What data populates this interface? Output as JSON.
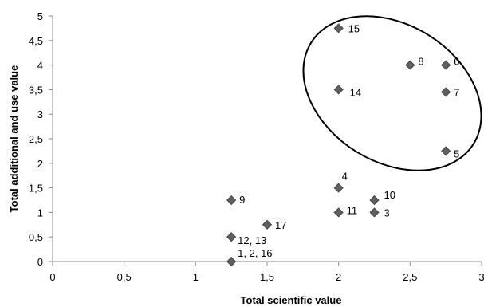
{
  "chart_data": {
    "type": "scatter",
    "title": "",
    "xlabel": "Total scientific value",
    "ylabel": "Total additional and use value",
    "xlim": [
      0,
      3
    ],
    "ylim": [
      0,
      5
    ],
    "x_ticks": [
      "0",
      "0,5",
      "1",
      "1,5",
      "2",
      "2,5",
      "3"
    ],
    "y_ticks": [
      "0",
      "0,5",
      "1",
      "1,5",
      "2",
      "2,5",
      "3",
      "3,5",
      "4",
      "4,5",
      "5"
    ],
    "grid": false,
    "marker_color": "#5f5f5f",
    "points": [
      {
        "x": 2,
        "y": 4.75,
        "label": "15"
      },
      {
        "x": 2.5,
        "y": 4,
        "label": "8"
      },
      {
        "x": 2.75,
        "y": 4,
        "label": "6"
      },
      {
        "x": 2,
        "y": 3.5,
        "label": "14"
      },
      {
        "x": 2.75,
        "y": 3.45,
        "label": "7"
      },
      {
        "x": 2.75,
        "y": 2.25,
        "label": "5"
      },
      {
        "x": 2,
        "y": 1.5,
        "label": "4"
      },
      {
        "x": 1.25,
        "y": 1.25,
        "label": "9"
      },
      {
        "x": 2.25,
        "y": 1.25,
        "label": "10"
      },
      {
        "x": 2,
        "y": 1,
        "label": "11"
      },
      {
        "x": 2.25,
        "y": 1,
        "label": "3"
      },
      {
        "x": 1.5,
        "y": 0.75,
        "label": "17"
      },
      {
        "x": 1.25,
        "y": 0.5,
        "label": "12, 13"
      },
      {
        "x": 1.25,
        "y": 0,
        "label": "1, 2, 16"
      }
    ],
    "annotations": [
      {
        "type": "ellipse",
        "encloses": [
          "15",
          "8",
          "6",
          "14",
          "7",
          "5"
        ]
      }
    ]
  }
}
